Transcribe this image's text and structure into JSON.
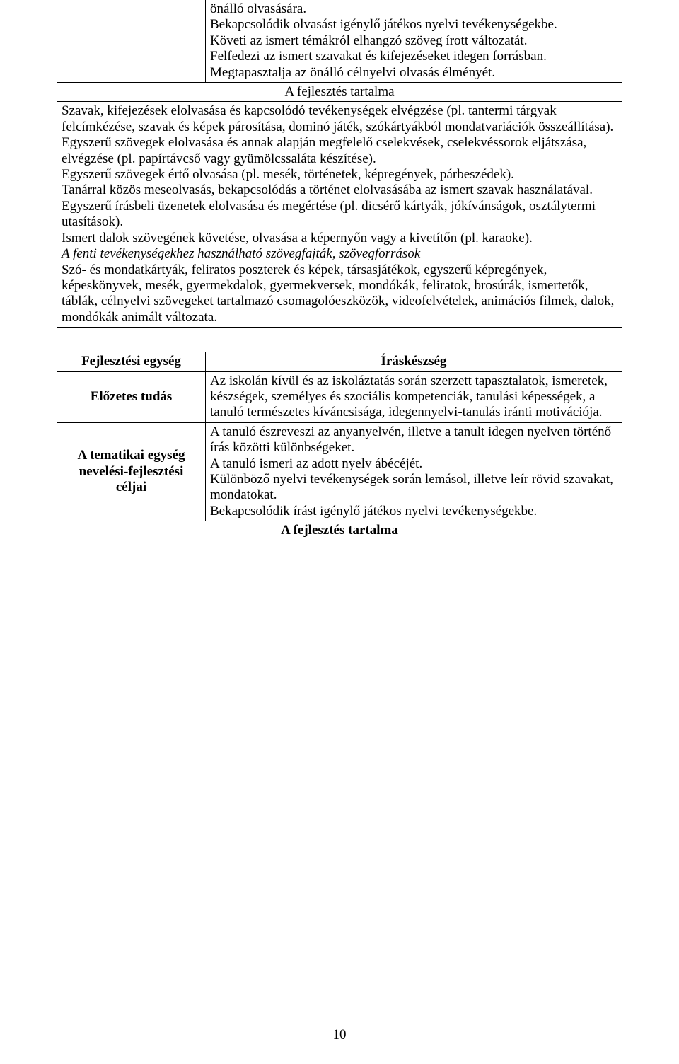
{
  "block1": {
    "cell_top_lines": [
      "önálló olvasására.",
      "Bekapcsolódik olvasást igénylő játékos nyelvi tevékenységekbe.",
      "Követi az ismert témákról elhangzó szöveg írott változatát.",
      "Felfedezi az ismert szavakat és kifejezéseket idegen forrásban.",
      "Megtapasztalja az önálló célnyelvi olvasás élményét."
    ],
    "dev_heading": "A fejlesztés tartalma",
    "body_paragraphs": [
      "Szavak, kifejezések elolvasása és kapcsolódó tevékenységek elvégzése (pl. tantermi tárgyak felcímkézése, szavak és képek párosítása, dominó játék, szókártyákból mondatvariációk összeállítása).",
      "Egyszerű szövegek elolvasása és annak alapján megfelelő cselekvések, cselekvéssorok eljátszása, elvégzése (pl. papírtávcső vagy gyümölcssaláta készítése).",
      "Egyszerű szövegek értő olvasása (pl. mesék, történetek, képregények, párbeszédek).",
      "Tanárral közös meseolvasás, bekapcsolódás a történet elolvasásába az ismert szavak használatával.",
      "Egyszerű írásbeli üzenetek elolvasása és megértése (pl. dicsérő kártyák, jókívánságok, osztálytermi utasítások).",
      "Ismert dalok szövegének követése, olvasása a képernyőn vagy a kivetítőn (pl. karaoke)."
    ],
    "italic_line": "A fenti tevékenységekhez használható szövegfajták, szövegforrások",
    "tail_paragraph": "Szó- és mondatkártyák, feliratos poszterek és képek, társasjátékok, egyszerű képregények, képeskönyvek, mesék, gyermekdalok, gyermekversek, mondókák, feliratok, brosúrák, ismertetők, táblák, célnyelvi szövegeket tartalmazó csomagolóeszközök, videofelvételek, animációs filmek, dalok, mondókák animált változata."
  },
  "block2": {
    "row1_left": "Fejlesztési egység",
    "row1_right": "Íráskészség",
    "row2_left": "Előzetes tudás",
    "row2_right": "Az iskolán kívül és az iskoláztatás során szerzett tapasztalatok, ismeretek, készségek, személyes és szociális kompetenciák, tanulási képességek, a tanuló természetes kíváncsisága, idegennyelvi-tanulás iránti motivációja.",
    "row3_left_lines": [
      "A tematikai egység",
      "nevelési-fejlesztési",
      "céljai"
    ],
    "row3_right_lines": [
      "A tanuló észreveszi az anyanyelvén, illetve a tanult idegen nyelven történő írás közötti különbségeket.",
      "A tanuló ismeri az adott nyelv ábécéjét.",
      "Különböző nyelvi tevékenységek során lemásol, illetve leír rövid szavakat, mondatokat.",
      "Bekapcsolódik írást igénylő játékos nyelvi tevékenységekbe."
    ],
    "dev_heading": "A fejlesztés tartalma"
  },
  "page_number": "10"
}
